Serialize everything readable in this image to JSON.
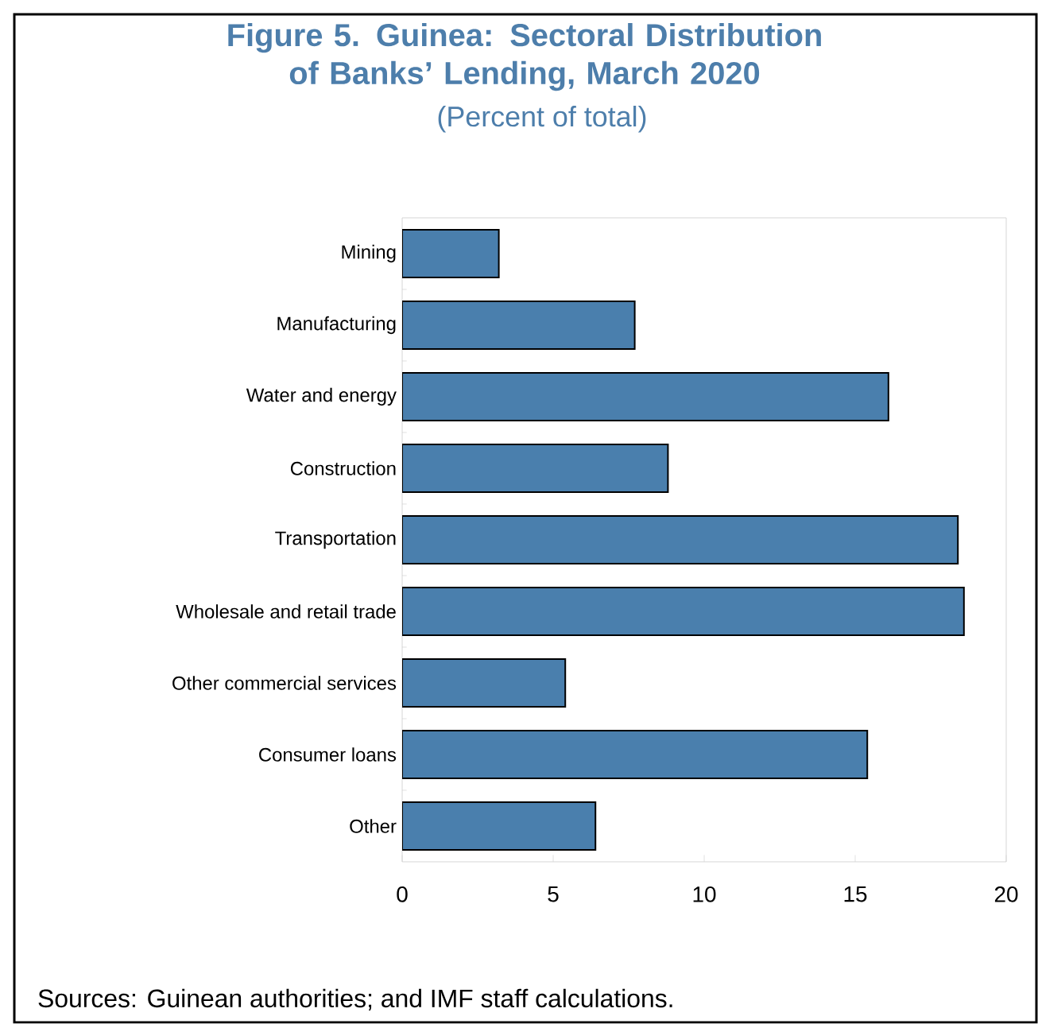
{
  "chart_data": {
    "type": "bar",
    "orientation": "horizontal",
    "title": "Figure 5.  Guinea: Sectoral Distribution of Banks’ Lending, March 2020",
    "subtitle": "(Percent of total)",
    "categories": [
      "Mining",
      "Manufacturing",
      "Water and energy",
      "Construction",
      "Transportation",
      "Wholesale and retail trade",
      "Other commercial services",
      "Consumer loans",
      "Other"
    ],
    "values": [
      3.2,
      7.7,
      16.1,
      8.8,
      18.4,
      18.6,
      5.4,
      15.4,
      6.4
    ],
    "color": "#4a7fad",
    "xlim": [
      0,
      20
    ],
    "xticks": [
      0,
      5,
      10,
      15,
      20
    ],
    "annotations": [
      "Sources: Guinean authorities; and IMF staff calculations."
    ]
  }
}
